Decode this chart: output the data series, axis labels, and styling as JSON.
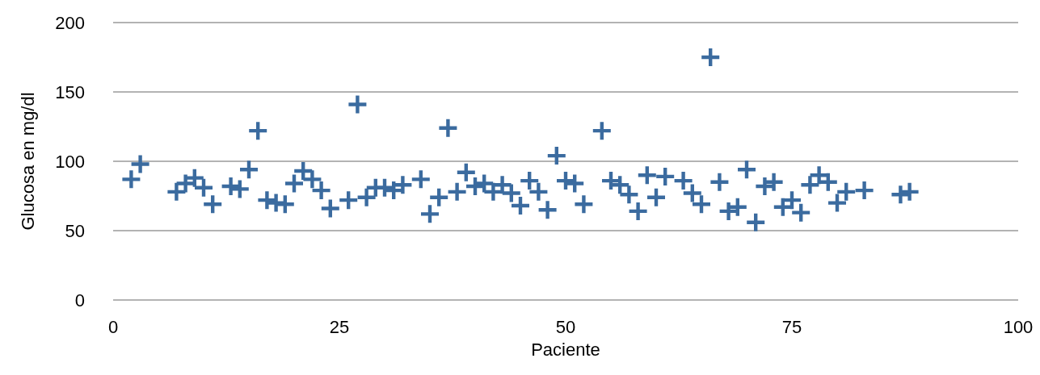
{
  "chart_data": {
    "type": "scatter",
    "xlabel": "Paciente",
    "ylabel": "Glucosa en mg/dl",
    "x": [
      2,
      3,
      7,
      8,
      9,
      10,
      11,
      13,
      14,
      15,
      16,
      17,
      18,
      19,
      20,
      21,
      22,
      23,
      24,
      26,
      27,
      28,
      29,
      30,
      31,
      32,
      34,
      35,
      36,
      37,
      38,
      39,
      40,
      41,
      42,
      43,
      44,
      45,
      46,
      47,
      48,
      49,
      50,
      51,
      52,
      54,
      55,
      56,
      57,
      58,
      59,
      60,
      61,
      63,
      64,
      65,
      66,
      67,
      68,
      69,
      70,
      71,
      72,
      73,
      74,
      75,
      76,
      77,
      78,
      79,
      80,
      81,
      83,
      87,
      88
    ],
    "series": [
      {
        "color": "#3b6b9f",
        "values": [
          87,
          98,
          78,
          84,
          88,
          81,
          69,
          82,
          80,
          94,
          122,
          72,
          70,
          69,
          84,
          93,
          87,
          79,
          66,
          72,
          141,
          74,
          81,
          81,
          79,
          83,
          87,
          62,
          74,
          124,
          78,
          92,
          82,
          84,
          78,
          83,
          77,
          68,
          86,
          78,
          65,
          104,
          86,
          84,
          69,
          122,
          86,
          83,
          76,
          64,
          90,
          74,
          89,
          86,
          77,
          69,
          175,
          85,
          64,
          67,
          94,
          56,
          82,
          85,
          67,
          72,
          63,
          83,
          90,
          85,
          70,
          78,
          79,
          76,
          78
        ]
      }
    ],
    "xlim": [
      0,
      100
    ],
    "xticks": [
      0,
      25,
      50,
      75,
      100
    ],
    "ylim": [
      0,
      200
    ],
    "yticks": [
      0,
      50,
      100,
      150,
      200
    ],
    "grid": "y",
    "marker": "cross"
  }
}
